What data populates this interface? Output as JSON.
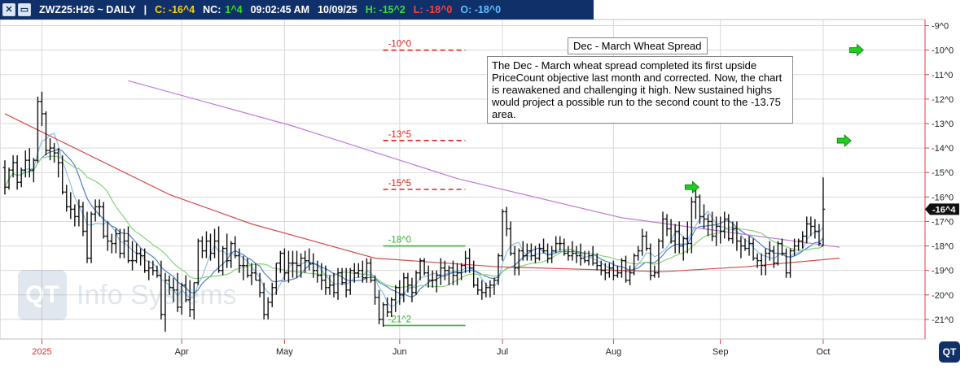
{
  "header": {
    "symbol": "ZWZ25:H26 ~ DAILY",
    "separator": "|",
    "change": "C: -16^4",
    "nc_label": "NC:",
    "nc_value": "1^4",
    "time": "09:02:45 AM",
    "date": "10/09/25",
    "high": "H: -15^2",
    "low": "L: -18^0",
    "open": "O: -18^0",
    "colors": {
      "change": "#ffd400",
      "nc_value": "#35e035",
      "high": "#35e035",
      "low": "#ff4040",
      "open": "#5fc0ff"
    }
  },
  "annotations": {
    "title": "Dec - March Wheat Spread",
    "text": "The Dec - March wheat spread completed its first upside PriceCount objective last month and corrected. Now, the chart is reawakened and challenging it high. New sustained highs would project a possible run to the second count to the -13.75 area."
  },
  "watermark": {
    "text": "Info Systems",
    "logo": "QT"
  },
  "logo": "QT",
  "chart_data": {
    "type": "ohlc",
    "y_ticks": [
      "-9^0",
      "-10^0",
      "-11^0",
      "-12^0",
      "-13^0",
      "-14^0",
      "-15^0",
      "-16^0",
      "-17^0",
      "-18^0",
      "-19^0",
      "-20^0",
      "-21^0"
    ],
    "ylim": [
      -21.8,
      -8.75
    ],
    "x_month_labels": [
      "2025",
      "Apr",
      "May",
      "Jun",
      "Jul",
      "Aug",
      "Sep",
      "Oct"
    ],
    "x_month_label_index": [
      9,
      43,
      68,
      96,
      121,
      148,
      174,
      199
    ],
    "last_price_label": "-16^4",
    "last_price": -16.5,
    "levels": [
      {
        "label": "-10^0",
        "value": -10.0,
        "color": "#e02020",
        "style": "dashed",
        "start_index": 92,
        "end_index": 112
      },
      {
        "label": "-13^5",
        "value": -13.69,
        "color": "#e02020",
        "style": "dashed",
        "start_index": 92,
        "end_index": 112
      },
      {
        "label": "-15^5",
        "value": -15.69,
        "color": "#e02020",
        "style": "dashed",
        "start_index": 92,
        "end_index": 112
      },
      {
        "label": "-18^0",
        "value": -18.0,
        "color": "#34b234",
        "style": "solid",
        "start_index": 92,
        "end_index": 112
      },
      {
        "label": "-21^2",
        "value": -21.25,
        "color": "#34b234",
        "style": "solid",
        "start_index": 92,
        "end_index": 112
      }
    ],
    "arrows": [
      {
        "index": 167,
        "value": -15.6,
        "color": "#22cc22"
      },
      {
        "index": 207,
        "value": -10.0,
        "color": "#22cc22"
      },
      {
        "index": 204,
        "value": -13.7,
        "color": "#22cc22"
      }
    ],
    "bars": [
      [
        -14.8,
        -14.5,
        -15.9,
        -15.6
      ],
      [
        -15.6,
        -14.8,
        -15.7,
        -14.9
      ],
      [
        -14.9,
        -14.3,
        -15.2,
        -14.6
      ],
      [
        -14.6,
        -14.3,
        -15.7,
        -15.4
      ],
      [
        -15.4,
        -14.8,
        -15.6,
        -14.9
      ],
      [
        -14.9,
        -14.1,
        -15.2,
        -14.5
      ],
      [
        -14.5,
        -14.0,
        -15.2,
        -14.9
      ],
      [
        -14.9,
        -14.4,
        -15.4,
        -14.5
      ],
      [
        -14.5,
        -11.9,
        -14.6,
        -12.1
      ],
      [
        -12.1,
        -11.7,
        -13.1,
        -12.6
      ],
      [
        -12.6,
        -12.5,
        -14.3,
        -14.1
      ],
      [
        -14.1,
        -13.6,
        -14.5,
        -14.0
      ],
      [
        -14.0,
        -13.8,
        -14.6,
        -14.2
      ],
      [
        -14.2,
        -14.0,
        -15.2,
        -14.6
      ],
      [
        -14.6,
        -14.3,
        -15.9,
        -15.8
      ],
      [
        -15.8,
        -15.5,
        -16.6,
        -16.4
      ],
      [
        -16.4,
        -15.8,
        -16.9,
        -16.5
      ],
      [
        -16.5,
        -16.3,
        -17.2,
        -16.8
      ],
      [
        -16.8,
        -16.1,
        -17.2,
        -16.4
      ],
      [
        -16.4,
        -16.2,
        -17.6,
        -17.4
      ],
      [
        -17.4,
        -16.6,
        -18.7,
        -18.5
      ],
      [
        -18.5,
        -16.6,
        -18.7,
        -16.7
      ],
      [
        -16.7,
        -16.1,
        -17.0,
        -16.4
      ],
      [
        -16.4,
        -16.1,
        -16.8,
        -16.4
      ],
      [
        -16.4,
        -16.2,
        -17.7,
        -17.6
      ],
      [
        -17.6,
        -17.0,
        -18.2,
        -17.8
      ],
      [
        -17.8,
        -17.5,
        -18.3,
        -17.9
      ],
      [
        -17.9,
        -17.3,
        -18.3,
        -17.5
      ],
      [
        -17.5,
        -17.3,
        -18.5,
        -18.3
      ],
      [
        -18.3,
        -17.3,
        -18.5,
        -17.8
      ],
      [
        -17.8,
        -17.2,
        -18.7,
        -18.6
      ],
      [
        -18.6,
        -17.8,
        -19.0,
        -18.6
      ],
      [
        -18.6,
        -17.9,
        -18.7,
        -18.3
      ],
      [
        -18.3,
        -18.1,
        -18.8,
        -18.4
      ],
      [
        -18.4,
        -18.1,
        -19.1,
        -19.0
      ],
      [
        -19.0,
        -18.6,
        -19.4,
        -18.9
      ],
      [
        -18.9,
        -18.6,
        -19.2,
        -19.0
      ],
      [
        -19.0,
        -18.8,
        -19.3,
        -19.2
      ],
      [
        -19.2,
        -18.6,
        -21.0,
        -20.8
      ],
      [
        -20.8,
        -19.1,
        -21.5,
        -19.4
      ],
      [
        -19.4,
        -19.2,
        -20.0,
        -19.7
      ],
      [
        -19.7,
        -19.3,
        -20.3,
        -19.8
      ],
      [
        -19.8,
        -19.1,
        -20.7,
        -20.5
      ],
      [
        -20.5,
        -19.5,
        -20.8,
        -19.6
      ],
      [
        -19.6,
        -19.2,
        -20.3,
        -20.2
      ],
      [
        -20.2,
        -19.4,
        -20.9,
        -20.6
      ],
      [
        -20.6,
        -19.5,
        -21.0,
        -19.5
      ],
      [
        -19.5,
        -17.7,
        -19.6,
        -17.8
      ],
      [
        -17.8,
        -17.6,
        -18.5,
        -18.2
      ],
      [
        -18.2,
        -17.4,
        -18.5,
        -17.8
      ],
      [
        -17.8,
        -17.5,
        -18.6,
        -18.3
      ],
      [
        -18.3,
        -17.3,
        -18.5,
        -17.8
      ],
      [
        -17.8,
        -17.2,
        -19.1,
        -19.0
      ],
      [
        -19.0,
        -18.0,
        -19.2,
        -18.1
      ],
      [
        -18.1,
        -17.5,
        -18.9,
        -18.6
      ],
      [
        -18.6,
        -17.8,
        -18.9,
        -17.9
      ],
      [
        -17.9,
        -17.6,
        -18.5,
        -18.4
      ],
      [
        -18.4,
        -18.1,
        -19.1,
        -18.8
      ],
      [
        -18.8,
        -18.4,
        -19.4,
        -18.8
      ],
      [
        -18.8,
        -18.5,
        -19.3,
        -19.2
      ],
      [
        -19.2,
        -18.7,
        -19.6,
        -19.1
      ],
      [
        -19.1,
        -18.7,
        -19.4,
        -19.4
      ],
      [
        -19.4,
        -19.1,
        -20.1,
        -19.9
      ],
      [
        -19.9,
        -19.5,
        -21.0,
        -20.8
      ],
      [
        -20.8,
        -20.1,
        -21.0,
        -20.3
      ],
      [
        -20.3,
        -19.5,
        -20.5,
        -19.7
      ],
      [
        -19.7,
        -18.7,
        -20.0,
        -18.7
      ],
      [
        -18.7,
        -18.2,
        -19.1,
        -18.3
      ],
      [
        -18.3,
        -18.1,
        -19.4,
        -19.1
      ],
      [
        -19.1,
        -18.2,
        -19.5,
        -18.7
      ],
      [
        -18.7,
        -18.2,
        -19.3,
        -18.7
      ],
      [
        -18.7,
        -18.2,
        -19.3,
        -18.8
      ],
      [
        -18.8,
        -18.3,
        -19.3,
        -18.5
      ],
      [
        -18.5,
        -18.2,
        -19.1,
        -18.6
      ],
      [
        -18.6,
        -18.1,
        -19.0,
        -18.7
      ],
      [
        -18.7,
        -18.3,
        -19.3,
        -19.0
      ],
      [
        -19.0,
        -18.6,
        -19.5,
        -19.2
      ],
      [
        -19.2,
        -18.7,
        -19.8,
        -19.4
      ],
      [
        -19.4,
        -18.8,
        -20.0,
        -19.7
      ],
      [
        -19.7,
        -19.2,
        -20.0,
        -19.6
      ],
      [
        -19.6,
        -19.1,
        -20.1,
        -19.9
      ],
      [
        -19.9,
        -18.9,
        -20.2,
        -19.1
      ],
      [
        -19.1,
        -18.9,
        -19.6,
        -19.5
      ],
      [
        -19.5,
        -18.9,
        -20.1,
        -19.8
      ],
      [
        -19.8,
        -18.9,
        -20.0,
        -19.0
      ],
      [
        -19.0,
        -18.7,
        -19.5,
        -19.1
      ],
      [
        -19.1,
        -18.7,
        -19.3,
        -19.0
      ],
      [
        -19.0,
        -18.6,
        -19.5,
        -19.3
      ],
      [
        -19.3,
        -18.5,
        -19.5,
        -18.7
      ],
      [
        -18.7,
        -18.5,
        -19.5,
        -19.4
      ],
      [
        -19.4,
        -19.2,
        -20.4,
        -20.1
      ],
      [
        -20.1,
        -19.8,
        -21.2,
        -21.0
      ],
      [
        -21.0,
        -20.3,
        -21.3,
        -20.4
      ],
      [
        -20.4,
        -20.1,
        -20.9,
        -20.7
      ],
      [
        -20.7,
        -20.1,
        -20.9,
        -20.2
      ],
      [
        -20.2,
        -19.6,
        -20.7,
        -19.7
      ],
      [
        -19.7,
        -19.4,
        -20.4,
        -20.0
      ],
      [
        -20.0,
        -19.1,
        -20.3,
        -19.3
      ],
      [
        -19.3,
        -19.1,
        -19.9,
        -19.6
      ],
      [
        -19.6,
        -19.3,
        -20.3,
        -19.9
      ],
      [
        -19.9,
        -19.0,
        -20.0,
        -19.1
      ],
      [
        -19.1,
        -18.5,
        -19.4,
        -18.6
      ],
      [
        -18.6,
        -18.5,
        -19.2,
        -19.1
      ],
      [
        -19.1,
        -18.8,
        -19.7,
        -19.4
      ],
      [
        -19.4,
        -19.0,
        -19.7,
        -19.4
      ],
      [
        -19.4,
        -19.0,
        -19.9,
        -19.2
      ],
      [
        -19.2,
        -18.5,
        -19.6,
        -18.9
      ],
      [
        -18.9,
        -18.6,
        -19.4,
        -19.0
      ],
      [
        -19.0,
        -18.8,
        -19.6,
        -18.9
      ],
      [
        -18.9,
        -18.6,
        -19.6,
        -19.2
      ],
      [
        -19.2,
        -18.7,
        -19.6,
        -19.1
      ],
      [
        -19.1,
        -18.7,
        -19.4,
        -18.8
      ],
      [
        -18.8,
        -18.2,
        -19.1,
        -18.5
      ],
      [
        -18.5,
        -18.1,
        -19.1,
        -18.9
      ],
      [
        -18.9,
        -18.6,
        -19.7,
        -19.6
      ],
      [
        -19.6,
        -19.3,
        -20.0,
        -19.8
      ],
      [
        -19.8,
        -19.4,
        -20.2,
        -19.9
      ],
      [
        -19.9,
        -19.5,
        -20.1,
        -19.7
      ],
      [
        -19.7,
        -19.4,
        -20.1,
        -19.6
      ],
      [
        -19.6,
        -19.3,
        -20.0,
        -19.4
      ],
      [
        -19.4,
        -18.3,
        -19.6,
        -18.4
      ],
      [
        -18.4,
        -16.5,
        -18.6,
        -16.6
      ],
      [
        -16.6,
        -16.4,
        -17.6,
        -17.3
      ],
      [
        -17.3,
        -17.0,
        -18.4,
        -18.3
      ],
      [
        -18.3,
        -18.0,
        -19.2,
        -18.9
      ],
      [
        -18.9,
        -18.1,
        -19.2,
        -18.2
      ],
      [
        -18.2,
        -17.8,
        -18.6,
        -18.4
      ],
      [
        -18.4,
        -17.9,
        -18.6,
        -18.2
      ],
      [
        -18.2,
        -17.9,
        -18.6,
        -18.4
      ],
      [
        -18.4,
        -18.0,
        -18.7,
        -18.5
      ],
      [
        -18.5,
        -17.9,
        -18.6,
        -18.1
      ],
      [
        -18.1,
        -17.7,
        -18.3,
        -18.2
      ],
      [
        -18.2,
        -17.9,
        -18.7,
        -18.5
      ],
      [
        -18.5,
        -18.0,
        -18.7,
        -18.2
      ],
      [
        -18.2,
        -17.6,
        -18.3,
        -17.9
      ],
      [
        -17.9,
        -17.6,
        -18.2,
        -17.9
      ],
      [
        -17.9,
        -17.7,
        -18.4,
        -18.3
      ],
      [
        -18.3,
        -18.0,
        -18.6,
        -18.4
      ],
      [
        -18.4,
        -17.8,
        -18.6,
        -18.3
      ],
      [
        -18.3,
        -18.0,
        -18.7,
        -18.4
      ],
      [
        -18.4,
        -17.9,
        -18.8,
        -18.5
      ],
      [
        -18.5,
        -18.2,
        -18.7,
        -18.6
      ],
      [
        -18.6,
        -18.2,
        -18.8,
        -18.4
      ],
      [
        -18.4,
        -18.0,
        -18.8,
        -18.7
      ],
      [
        -18.7,
        -18.3,
        -19.0,
        -18.8
      ],
      [
        -18.8,
        -18.6,
        -19.2,
        -19.0
      ],
      [
        -19.0,
        -18.7,
        -19.4,
        -19.1
      ],
      [
        -19.1,
        -18.7,
        -19.3,
        -18.9
      ],
      [
        -18.9,
        -18.6,
        -19.4,
        -19.2
      ],
      [
        -19.2,
        -18.8,
        -19.3,
        -19.1
      ],
      [
        -19.1,
        -18.5,
        -19.3,
        -18.6
      ],
      [
        -18.6,
        -18.4,
        -19.5,
        -19.4
      ],
      [
        -19.4,
        -18.8,
        -19.6,
        -19.1
      ],
      [
        -19.1,
        -18.3,
        -19.2,
        -18.4
      ],
      [
        -18.4,
        -18.0,
        -18.6,
        -18.2
      ],
      [
        -18.2,
        -17.3,
        -18.4,
        -17.6
      ],
      [
        -17.6,
        -17.4,
        -18.2,
        -18.1
      ],
      [
        -18.1,
        -17.9,
        -19.4,
        -19.2
      ],
      [
        -19.2,
        -18.8,
        -19.3,
        -19.1
      ],
      [
        -19.1,
        -17.7,
        -19.3,
        -17.8
      ],
      [
        -17.8,
        -16.6,
        -18.1,
        -16.9
      ],
      [
        -16.9,
        -16.7,
        -17.6,
        -17.3
      ],
      [
        -17.3,
        -16.9,
        -17.9,
        -17.8
      ],
      [
        -17.8,
        -17.1,
        -18.3,
        -17.4
      ],
      [
        -17.4,
        -17.0,
        -18.3,
        -18.0
      ],
      [
        -18.0,
        -17.6,
        -18.6,
        -17.7
      ],
      [
        -17.7,
        -17.0,
        -18.3,
        -17.9
      ],
      [
        -17.9,
        -16.0,
        -18.3,
        -16.2
      ],
      [
        -16.2,
        -15.5,
        -16.9,
        -16.0
      ],
      [
        -16.0,
        -15.9,
        -17.1,
        -16.8
      ],
      [
        -16.8,
        -16.3,
        -17.3,
        -16.9
      ],
      [
        -16.9,
        -16.7,
        -17.6,
        -17.0
      ],
      [
        -17.0,
        -16.6,
        -17.8,
        -17.6
      ],
      [
        -17.6,
        -16.8,
        -18.0,
        -17.2
      ],
      [
        -17.2,
        -16.8,
        -17.9,
        -17.4
      ],
      [
        -17.4,
        -16.6,
        -17.7,
        -16.9
      ],
      [
        -16.9,
        -16.7,
        -17.8,
        -17.7
      ],
      [
        -17.7,
        -17.0,
        -17.9,
        -17.3
      ],
      [
        -17.3,
        -17.0,
        -18.2,
        -17.8
      ],
      [
        -17.8,
        -17.6,
        -18.5,
        -18.0
      ],
      [
        -18.0,
        -17.7,
        -18.2,
        -18.1
      ],
      [
        -18.1,
        -17.6,
        -18.4,
        -17.9
      ],
      [
        -17.9,
        -17.7,
        -18.6,
        -18.5
      ],
      [
        -18.5,
        -18.3,
        -18.9,
        -18.6
      ],
      [
        -18.6,
        -18.3,
        -19.2,
        -18.8
      ],
      [
        -18.8,
        -18.1,
        -19.2,
        -18.3
      ],
      [
        -18.3,
        -17.8,
        -18.6,
        -18.2
      ],
      [
        -18.2,
        -18.0,
        -18.9,
        -18.7
      ],
      [
        -18.7,
        -17.8,
        -18.8,
        -17.9
      ],
      [
        -17.9,
        -17.7,
        -18.4,
        -18.3
      ],
      [
        -18.3,
        -18.1,
        -19.3,
        -19.1
      ],
      [
        -19.1,
        -18.1,
        -19.3,
        -18.2
      ],
      [
        -18.2,
        -17.7,
        -18.4,
        -18.0
      ],
      [
        -18.0,
        -17.7,
        -18.2,
        -17.8
      ],
      [
        -17.8,
        -17.4,
        -18.1,
        -17.6
      ],
      [
        -17.6,
        -16.8,
        -17.9,
        -17.1
      ],
      [
        -17.1,
        -16.8,
        -17.6,
        -17.2
      ],
      [
        -17.2,
        -16.9,
        -17.7,
        -17.4
      ],
      [
        -17.4,
        -17.1,
        -18.0,
        -17.9
      ],
      [
        -18.0,
        -15.2,
        -18.0,
        -16.5
      ]
    ],
    "moving_averages": [
      {
        "id": "fast",
        "color": "#8fbde6",
        "period": 5
      },
      {
        "id": "medium",
        "color": "#4e7fc2",
        "period": 10
      },
      {
        "id": "slow",
        "color": "#86d27a",
        "period": 18
      },
      {
        "id": "long",
        "color": "#d24e4e",
        "start_index": 0,
        "end_index": 203,
        "points": [
          [
            0,
            -12.6
          ],
          [
            40,
            -15.9
          ],
          [
            60,
            -17.1
          ],
          [
            90,
            -18.5
          ],
          [
            120,
            -18.85
          ],
          [
            160,
            -19.05
          ],
          [
            180,
            -18.85
          ],
          [
            203,
            -18.5
          ]
        ]
      },
      {
        "id": "longest",
        "color": "#c07ad9",
        "start_index": 30,
        "end_index": 203,
        "points": [
          [
            30,
            -11.25
          ],
          [
            70,
            -13.1
          ],
          [
            110,
            -15.25
          ],
          [
            150,
            -16.85
          ],
          [
            203,
            -18.05
          ]
        ]
      }
    ]
  }
}
